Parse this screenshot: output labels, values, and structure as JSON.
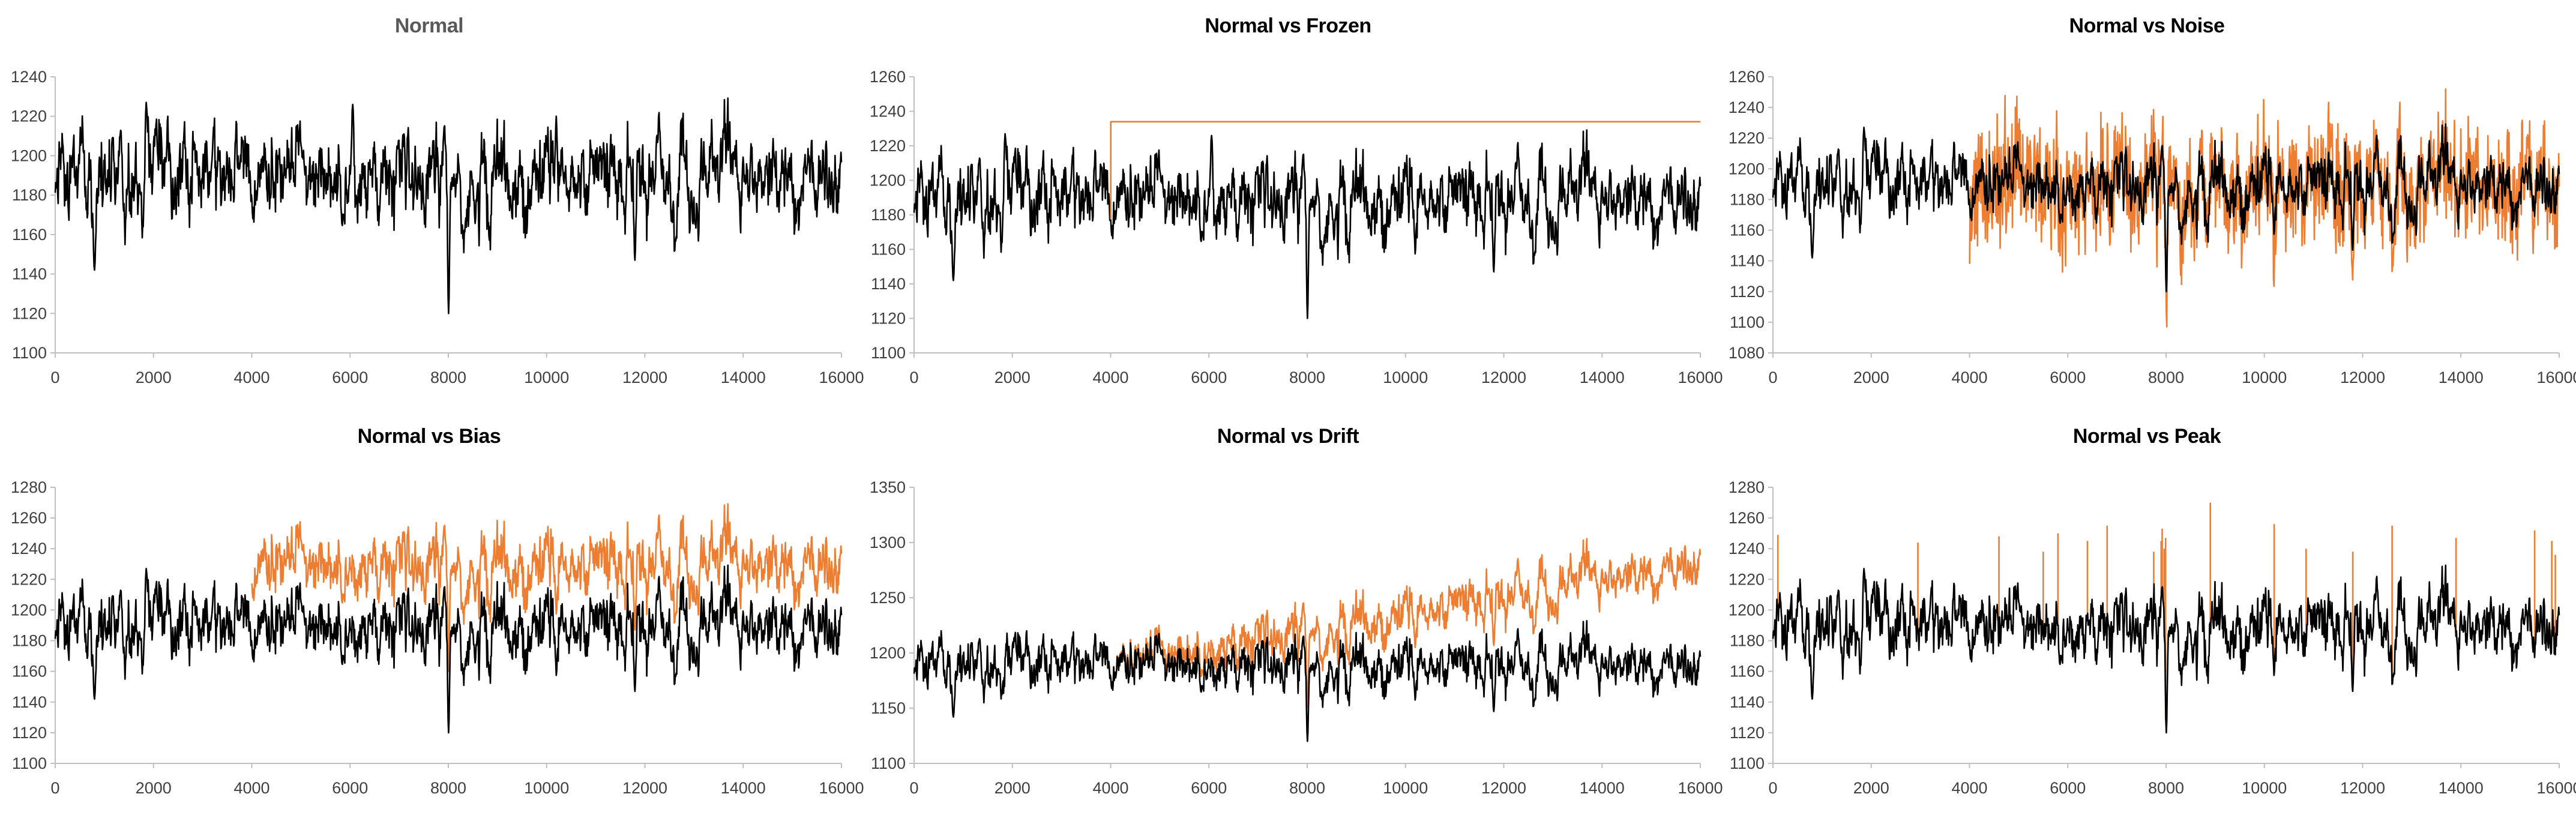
{
  "colors": {
    "normal": "#000000",
    "anomaly": "#ED7D31",
    "axis": "#BFBFBF"
  },
  "chart_data": [
    {
      "type": "line",
      "title": "Normal",
      "x_ticks": [
        "0",
        "2000",
        "4000",
        "6000",
        "8000",
        "10000",
        "12000",
        "14000",
        "16000"
      ],
      "y_ticks": [
        "1100",
        "1120",
        "1140",
        "1160",
        "1180",
        "1200",
        "1220",
        "1240"
      ],
      "xlim": [
        0,
        16000
      ],
      "ylim": [
        1100,
        1240
      ],
      "grid": false,
      "legend": "none",
      "series": [
        {
          "role": "normal",
          "color": "#000000",
          "mean": 1188,
          "std": 12,
          "events": [
            {
              "x": 8000,
              "y": 1120
            },
            {
              "x": 11800,
              "y": 1147
            },
            {
              "x": 800,
              "y": 1142
            },
            {
              "x": 1850,
              "y": 1227
            },
            {
              "x": 6050,
              "y": 1226
            },
            {
              "x": 10200,
              "y": 1220
            }
          ]
        }
      ]
    },
    {
      "type": "line",
      "title": "Normal vs Frozen",
      "x_ticks": [
        "0",
        "2000",
        "4000",
        "6000",
        "8000",
        "10000",
        "12000",
        "14000",
        "16000"
      ],
      "y_ticks": [
        "1100",
        "1120",
        "1140",
        "1160",
        "1180",
        "1200",
        "1220",
        "1240",
        "1260"
      ],
      "xlim": [
        0,
        16000
      ],
      "ylim": [
        1100,
        1260
      ],
      "grid": false,
      "legend": "none",
      "series": [
        {
          "role": "normal",
          "color": "#000000",
          "mean": 1188,
          "std": 12,
          "events": [
            {
              "x": 8000,
              "y": 1120
            },
            {
              "x": 11800,
              "y": 1147
            },
            {
              "x": 800,
              "y": 1142
            },
            {
              "x": 1850,
              "y": 1227
            },
            {
              "x": 6050,
              "y": 1226
            }
          ]
        },
        {
          "role": "anomaly",
          "color": "#ED7D31",
          "kind": "frozen",
          "start": 4000,
          "level": 1234
        }
      ]
    },
    {
      "type": "line",
      "title": "Normal vs Noise",
      "x_ticks": [
        "0",
        "2000",
        "4000",
        "6000",
        "8000",
        "10000",
        "12000",
        "14000",
        "16000"
      ],
      "y_ticks": [
        "1080",
        "1100",
        "1120",
        "1140",
        "1160",
        "1180",
        "1200",
        "1220",
        "1240",
        "1260"
      ],
      "xlim": [
        0,
        16000
      ],
      "ylim": [
        1080,
        1260
      ],
      "grid": false,
      "legend": "none",
      "series": [
        {
          "role": "anomaly",
          "color": "#ED7D31",
          "kind": "noise",
          "start": 4000,
          "amplitude": 30,
          "min": 1097,
          "max": 1252
        },
        {
          "role": "normal",
          "color": "#000000",
          "mean": 1188,
          "std": 12,
          "events": [
            {
              "x": 8000,
              "y": 1120
            },
            {
              "x": 11800,
              "y": 1147
            },
            {
              "x": 800,
              "y": 1142
            },
            {
              "x": 1850,
              "y": 1227
            }
          ]
        }
      ]
    },
    {
      "type": "line",
      "title": "Normal vs Bias",
      "x_ticks": [
        "0",
        "2000",
        "4000",
        "6000",
        "8000",
        "10000",
        "12000",
        "14000",
        "16000"
      ],
      "y_ticks": [
        "1100",
        "1120",
        "1140",
        "1160",
        "1180",
        "1200",
        "1220",
        "1240",
        "1260",
        "1280"
      ],
      "xlim": [
        0,
        16000
      ],
      "ylim": [
        1100,
        1280
      ],
      "grid": false,
      "legend": "none",
      "series": [
        {
          "role": "anomaly",
          "color": "#ED7D31",
          "kind": "bias",
          "start": 4000,
          "offset": 40
        },
        {
          "role": "normal",
          "color": "#000000",
          "mean": 1188,
          "std": 12,
          "events": [
            {
              "x": 8000,
              "y": 1120
            },
            {
              "x": 11800,
              "y": 1147
            },
            {
              "x": 800,
              "y": 1142
            },
            {
              "x": 1850,
              "y": 1227
            }
          ]
        }
      ]
    },
    {
      "type": "line",
      "title": "Normal vs Drift",
      "x_ticks": [
        "0",
        "2000",
        "4000",
        "6000",
        "8000",
        "10000",
        "12000",
        "14000",
        "16000"
      ],
      "y_ticks": [
        "1100",
        "1150",
        "1200",
        "1250",
        "1300",
        "1350"
      ],
      "xlim": [
        0,
        16000
      ],
      "ylim": [
        1100,
        1350
      ],
      "grid": false,
      "legend": "none",
      "series": [
        {
          "role": "anomaly",
          "color": "#ED7D31",
          "kind": "drift",
          "start": 4000,
          "end_offset": 92
        },
        {
          "role": "normal",
          "color": "#000000",
          "mean": 1188,
          "std": 12,
          "events": [
            {
              "x": 8000,
              "y": 1120
            },
            {
              "x": 11800,
              "y": 1147
            },
            {
              "x": 800,
              "y": 1142
            }
          ]
        }
      ]
    },
    {
      "type": "line",
      "title": "Normal vs Peak",
      "x_ticks": [
        "0",
        "2000",
        "4000",
        "6000",
        "8000",
        "10000",
        "12000",
        "14000",
        "16000"
      ],
      "y_ticks": [
        "1100",
        "1120",
        "1140",
        "1160",
        "1180",
        "1200",
        "1220",
        "1240",
        "1260",
        "1280"
      ],
      "xlim": [
        0,
        16000
      ],
      "ylim": [
        1100,
        1280
      ],
      "grid": false,
      "legend": "none",
      "series": [
        {
          "role": "anomaly",
          "color": "#ED7D31",
          "kind": "peak",
          "peaks": [
            {
              "x": 100,
              "y": 1249
            },
            {
              "x": 2950,
              "y": 1244
            },
            {
              "x": 4600,
              "y": 1248
            },
            {
              "x": 5500,
              "y": 1238
            },
            {
              "x": 5800,
              "y": 1250
            },
            {
              "x": 6400,
              "y": 1245
            },
            {
              "x": 6800,
              "y": 1255
            },
            {
              "x": 7750,
              "y": 1238
            },
            {
              "x": 7900,
              "y": 1245
            },
            {
              "x": 7920,
              "y": 1253
            },
            {
              "x": 7960,
              "y": 1240
            },
            {
              "x": 7990,
              "y": 1247
            },
            {
              "x": 8900,
              "y": 1270
            },
            {
              "x": 10200,
              "y": 1256
            },
            {
              "x": 10850,
              "y": 1240
            },
            {
              "x": 11800,
              "y": 1238
            },
            {
              "x": 12600,
              "y": 1255
            },
            {
              "x": 13900,
              "y": 1247
            },
            {
              "x": 15500,
              "y": 1252
            },
            {
              "x": 15850,
              "y": 1245
            },
            {
              "x": 15920,
              "y": 1236
            }
          ]
        },
        {
          "role": "normal",
          "color": "#000000",
          "mean": 1188,
          "std": 12,
          "events": [
            {
              "x": 8000,
              "y": 1120
            },
            {
              "x": 11800,
              "y": 1147
            },
            {
              "x": 800,
              "y": 1142
            },
            {
              "x": 1850,
              "y": 1227
            }
          ]
        }
      ]
    }
  ]
}
